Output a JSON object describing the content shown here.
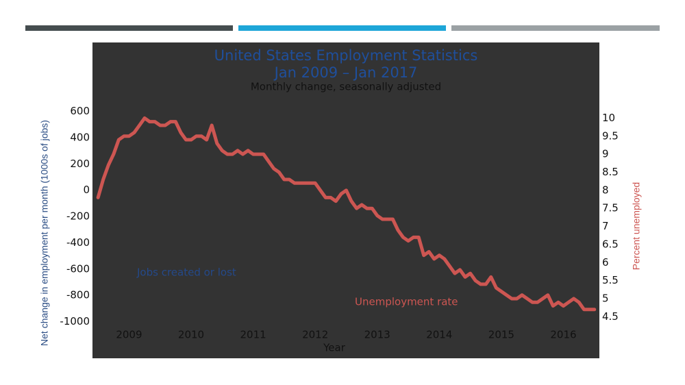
{
  "chart_data": {
    "type": "line",
    "title": [
      "United States Employment Statistics",
      "Jan 2009 – Jan 2017"
    ],
    "subtitle": "Monthly change, seasonally adjusted",
    "x_label": "Year",
    "y_label": "Net change in employment per month (1000s of jobs)",
    "y2_label": "Percent unemployed",
    "annotations": [
      "Jobs created or lost",
      "Unemployment rate"
    ],
    "xlim": [
      2008.91,
      2017.08
    ],
    "xticks": [
      {
        "value": 2009.5,
        "label": "2009"
      },
      {
        "value": 2010.5,
        "label": "2010"
      },
      {
        "value": 2011.5,
        "label": "2011"
      },
      {
        "value": 2012.5,
        "label": "2012"
      },
      {
        "value": 2013.5,
        "label": "2013"
      },
      {
        "value": 2014.5,
        "label": "2014"
      },
      {
        "value": 2015.5,
        "label": "2015"
      },
      {
        "value": 2016.5,
        "label": "2016"
      }
    ],
    "ylim": [
      -1100,
      700
    ],
    "yticks": [
      600,
      400,
      200,
      0,
      -200,
      -400,
      -600,
      -800,
      -1000
    ],
    "y2lim": [
      4.0,
      10.55
    ],
    "y2ticks": [
      10,
      9.5,
      9,
      8.5,
      8,
      7.5,
      7,
      6.5,
      6,
      5.5,
      5,
      4.5
    ],
    "x": [
      2009,
      2009.083,
      2009.167,
      2009.25,
      2009.333,
      2009.417,
      2009.5,
      2009.583,
      2009.667,
      2009.75,
      2009.833,
      2009.917,
      2010,
      2010.083,
      2010.167,
      2010.25,
      2010.333,
      2010.417,
      2010.5,
      2010.583,
      2010.667,
      2010.75,
      2010.833,
      2010.917,
      2011,
      2011.083,
      2011.167,
      2011.25,
      2011.333,
      2011.417,
      2011.5,
      2011.583,
      2011.667,
      2011.75,
      2011.833,
      2011.917,
      2012,
      2012.083,
      2012.167,
      2012.25,
      2012.333,
      2012.417,
      2012.5,
      2012.583,
      2012.667,
      2012.75,
      2012.833,
      2012.917,
      2013,
      2013.083,
      2013.167,
      2013.25,
      2013.333,
      2013.417,
      2013.5,
      2013.583,
      2013.667,
      2013.75,
      2013.833,
      2013.917,
      2014,
      2014.083,
      2014.167,
      2014.25,
      2014.333,
      2014.417,
      2014.5,
      2014.583,
      2014.667,
      2014.75,
      2014.833,
      2014.917,
      2015,
      2015.083,
      2015.167,
      2015.25,
      2015.333,
      2015.417,
      2015.5,
      2015.583,
      2015.667,
      2015.75,
      2015.833,
      2015.917,
      2016,
      2016.083,
      2016.167,
      2016.25,
      2016.333,
      2016.417,
      2016.5,
      2016.583,
      2016.667,
      2016.75,
      2016.833,
      2016.917,
      2017
    ],
    "series": [
      {
        "name": "Unemployment rate",
        "color": "#cd5652",
        "axis": "y2",
        "values": [
          7.8,
          8.3,
          8.7,
          9.0,
          9.4,
          9.5,
          9.5,
          9.6,
          9.8,
          10.0,
          9.9,
          9.9,
          9.8,
          9.8,
          9.9,
          9.9,
          9.6,
          9.4,
          9.4,
          9.5,
          9.5,
          9.4,
          9.8,
          9.3,
          9.1,
          9.0,
          9.0,
          9.1,
          9.0,
          9.1,
          9.0,
          9.0,
          9.0,
          8.8,
          8.6,
          8.5,
          8.3,
          8.3,
          8.2,
          8.2,
          8.2,
          8.2,
          8.2,
          8.0,
          7.8,
          7.8,
          7.7,
          7.9,
          8.0,
          7.7,
          7.5,
          7.6,
          7.5,
          7.5,
          7.3,
          7.2,
          7.2,
          7.2,
          6.9,
          6.7,
          6.6,
          6.7,
          6.7,
          6.2,
          6.3,
          6.1,
          6.2,
          6.1,
          5.9,
          5.7,
          5.8,
          5.6,
          5.7,
          5.5,
          5.4,
          5.4,
          5.6,
          5.3,
          5.2,
          5.1,
          5.0,
          5.0,
          5.1,
          5.0,
          4.9,
          4.9,
          5.0,
          5.1,
          4.8,
          4.9,
          4.8,
          4.9,
          5.0,
          4.9,
          4.7,
          4.7,
          4.7
        ]
      }
    ]
  }
}
